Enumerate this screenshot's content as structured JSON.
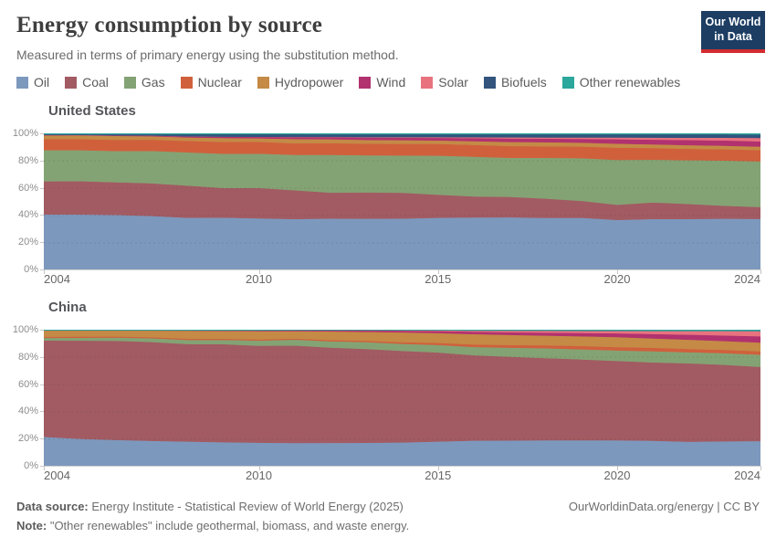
{
  "header": {
    "title": "Energy consumption by source",
    "subtitle": "Measured in terms of primary energy using the substitution method.",
    "logo": {
      "line1": "Our World",
      "line2": "in Data",
      "bg": "#1d3d63",
      "accent": "#d42b2f"
    }
  },
  "legend": {
    "items": [
      {
        "label": "Oil",
        "color": "#7d98bd"
      },
      {
        "label": "Coal",
        "color": "#a25b62"
      },
      {
        "label": "Gas",
        "color": "#84a374"
      },
      {
        "label": "Nuclear",
        "color": "#d0603c"
      },
      {
        "label": "Hydropower",
        "color": "#c48a46"
      },
      {
        "label": "Wind",
        "color": "#b1326f"
      },
      {
        "label": "Solar",
        "color": "#e8737f"
      },
      {
        "label": "Biofuels",
        "color": "#32547d"
      },
      {
        "label": "Other renewables",
        "color": "#2ba79b"
      }
    ]
  },
  "axes": {
    "y_tick_labels": [
      "0%",
      "20%",
      "40%",
      "60%",
      "80%",
      "100%"
    ],
    "x_tick_years": [
      2004,
      2010,
      2015,
      2020,
      2024
    ]
  },
  "chart_data": [
    {
      "type": "area",
      "stacked_percent": true,
      "title": "United States",
      "grid": true,
      "legend_position": "top",
      "ylim": [
        0,
        100
      ],
      "x": [
        2004,
        2005,
        2006,
        2007,
        2008,
        2009,
        2010,
        2011,
        2012,
        2013,
        2014,
        2015,
        2016,
        2017,
        2018,
        2019,
        2020,
        2021,
        2022,
        2023,
        2024
      ],
      "series": [
        {
          "name": "Oil",
          "color": "#7d98bd",
          "values": [
            40.9,
            40.9,
            40.6,
            39.9,
            38.6,
            38.9,
            38.2,
            37.8,
            38.0,
            38.1,
            38.2,
            38.9,
            39.2,
            39.3,
            38.8,
            38.8,
            37.1,
            38.0,
            38.0,
            38.2,
            38.0
          ]
        },
        {
          "name": "Coal",
          "color": "#a25b62",
          "values": [
            24.2,
            24.3,
            23.9,
            23.9,
            23.6,
            21.8,
            22.3,
            21.2,
            19.0,
            19.3,
            19.0,
            17.0,
            15.5,
            15.2,
            14.2,
            12.5,
            11.2,
            12.2,
            11.1,
            9.6,
            8.8
          ]
        },
        {
          "name": "Gas",
          "color": "#84a374",
          "values": [
            22.8,
            22.6,
            22.9,
            23.8,
            24.3,
            25.2,
            25.3,
            26.0,
            27.8,
            27.4,
            27.5,
            28.9,
            29.4,
            28.9,
            30.1,
            31.5,
            33.0,
            31.7,
            32.4,
            33.4,
            33.7
          ]
        },
        {
          "name": "Nuclear",
          "color": "#d0603c",
          "values": [
            8.2,
            8.1,
            8.2,
            8.2,
            8.4,
            8.8,
            8.6,
            8.5,
            8.5,
            8.5,
            8.5,
            8.6,
            8.7,
            8.7,
            8.5,
            8.6,
            9.0,
            8.6,
            8.4,
            8.4,
            8.3
          ]
        },
        {
          "name": "Hydropower",
          "color": "#c48a46",
          "values": [
            2.7,
            2.7,
            2.9,
            2.5,
            2.6,
            2.8,
            2.6,
            3.2,
            2.9,
            2.8,
            2.7,
            2.6,
            2.8,
            3.1,
            3.0,
            2.9,
            2.9,
            2.7,
            2.7,
            2.6,
            2.5
          ]
        },
        {
          "name": "Wind",
          "color": "#b1326f",
          "values": [
            0.2,
            0.2,
            0.3,
            0.4,
            0.6,
            0.9,
            1.0,
            1.3,
            1.5,
            1.7,
            1.8,
            1.9,
            2.2,
            2.5,
            2.6,
            2.8,
            3.3,
            3.5,
            3.8,
            3.9,
            3.9
          ]
        },
        {
          "name": "Solar",
          "color": "#e8737f",
          "values": [
            0.1,
            0.1,
            0.1,
            0.1,
            0.1,
            0.1,
            0.1,
            0.2,
            0.2,
            0.3,
            0.4,
            0.5,
            0.6,
            0.8,
            0.9,
            1.0,
            1.3,
            1.5,
            1.7,
            2.0,
            2.5
          ]
        },
        {
          "name": "Biofuels",
          "color": "#32547d",
          "values": [
            0.5,
            0.6,
            0.8,
            1.0,
            1.6,
            1.8,
            1.9,
            2.0,
            1.9,
            2.1,
            2.1,
            2.1,
            2.2,
            2.3,
            2.3,
            2.3,
            2.3,
            2.4,
            2.5,
            2.5,
            2.6
          ]
        },
        {
          "name": "Other renewables",
          "color": "#2ba79b",
          "values": [
            0.6,
            0.6,
            0.6,
            0.6,
            0.6,
            0.6,
            0.6,
            0.6,
            0.7,
            0.7,
            0.7,
            0.7,
            0.7,
            0.7,
            0.7,
            0.7,
            0.7,
            0.7,
            0.7,
            0.7,
            0.8
          ]
        }
      ]
    },
    {
      "type": "area",
      "stacked_percent": true,
      "title": "China",
      "grid": true,
      "legend_position": "top",
      "ylim": [
        0,
        100
      ],
      "x": [
        2004,
        2005,
        2006,
        2007,
        2008,
        2009,
        2010,
        2011,
        2012,
        2013,
        2014,
        2015,
        2016,
        2017,
        2018,
        2019,
        2020,
        2021,
        2022,
        2023,
        2024
      ],
      "series": [
        {
          "name": "Oil",
          "color": "#7d98bd",
          "values": [
            21.8,
            20.4,
            19.6,
            18.9,
            18.4,
            17.9,
            17.6,
            17.3,
            17.4,
            17.5,
            17.8,
            18.6,
            19.1,
            19.3,
            19.5,
            19.6,
            19.5,
            19.2,
            18.5,
            18.6,
            18.4
          ]
        },
        {
          "name": "Coal",
          "color": "#a25b62",
          "values": [
            70.4,
            71.7,
            72.3,
            72.2,
            71.2,
            71.6,
            70.7,
            71.2,
            69.6,
            68.5,
            67.2,
            65.6,
            62.5,
            61.5,
            60.5,
            59.7,
            58.5,
            57.8,
            58.0,
            56.0,
            53.2
          ]
        },
        {
          "name": "Gas",
          "color": "#84a374",
          "values": [
            1.9,
            2.1,
            2.4,
            2.7,
            3.0,
            3.2,
            3.8,
            4.3,
            4.6,
            5.0,
            5.2,
            5.5,
            6.0,
            6.6,
            7.2,
            7.5,
            7.8,
            8.3,
            8.2,
            8.5,
            8.8
          ]
        },
        {
          "name": "Nuclear",
          "color": "#d0603c",
          "values": [
            0.8,
            0.8,
            0.8,
            0.8,
            0.8,
            0.8,
            0.8,
            0.8,
            0.9,
            1.0,
            1.2,
            1.5,
            1.8,
            2.0,
            2.2,
            2.4,
            2.4,
            2.5,
            2.4,
            2.4,
            2.3
          ]
        },
        {
          "name": "Hydropower",
          "color": "#c48a46",
          "values": [
            4.5,
            4.4,
            4.3,
            4.8,
            5.9,
            5.7,
            6.1,
            5.4,
            6.3,
            6.5,
            7.2,
            7.3,
            7.6,
            7.4,
            7.1,
            7.2,
            7.4,
            6.9,
            6.9,
            6.4,
            6.3
          ]
        },
        {
          "name": "Wind",
          "color": "#b1326f",
          "values": [
            0.1,
            0.1,
            0.1,
            0.1,
            0.2,
            0.3,
            0.5,
            0.7,
            0.8,
            1.0,
            1.2,
            1.5,
            1.8,
            2.0,
            2.2,
            2.4,
            2.8,
            3.3,
            3.7,
            4.1,
            4.5
          ]
        },
        {
          "name": "Solar",
          "color": "#e8737f",
          "values": [
            0.0,
            0.0,
            0.0,
            0.0,
            0.0,
            0.0,
            0.0,
            0.0,
            0.1,
            0.2,
            0.3,
            0.5,
            0.8,
            1.1,
            1.4,
            1.6,
            1.8,
            2.2,
            2.7,
            3.3,
            3.7
          ]
        },
        {
          "name": "Biofuels",
          "color": "#32547d",
          "values": [
            0.0,
            0.0,
            0.0,
            0.0,
            0.0,
            0.0,
            0.0,
            0.0,
            0.0,
            0.0,
            0.0,
            0.0,
            0.0,
            0.1,
            0.1,
            0.1,
            0.1,
            0.1,
            0.1,
            0.1,
            0.1
          ]
        },
        {
          "name": "Other renewables",
          "color": "#2ba79b",
          "values": [
            0.5,
            0.5,
            0.5,
            0.5,
            0.5,
            0.5,
            0.5,
            0.3,
            0.3,
            0.3,
            0.4,
            0.4,
            0.6,
            0.6,
            0.6,
            0.7,
            0.7,
            0.8,
            0.8,
            0.8,
            0.9
          ]
        }
      ]
    }
  ],
  "footer": {
    "source_label": "Data source:",
    "source_text": " Energy Institute - Statistical Review of World Energy (2025)",
    "note_label": "Note:",
    "note_text": " \"Other renewables\" include geothermal, biomass, and waste energy.",
    "link": "OurWorldinData.org/energy",
    "separator": " | ",
    "license": "CC BY"
  }
}
